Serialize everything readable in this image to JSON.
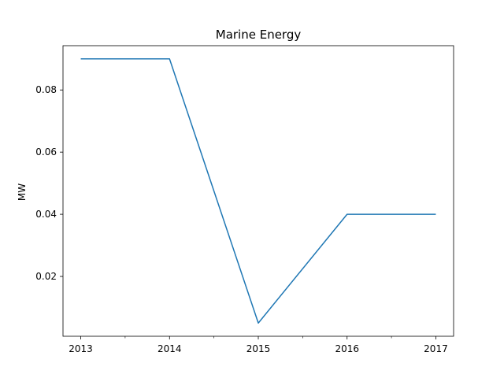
{
  "chart_data": {
    "type": "line",
    "title": "Marine Energy",
    "xlabel": "",
    "ylabel": "MW",
    "x": [
      2013,
      2014,
      2015,
      2016,
      2017
    ],
    "series": [
      {
        "values": [
          0.09,
          0.09,
          0.005,
          0.04,
          0.04
        ],
        "color": "#1f77b4"
      }
    ],
    "xlim": [
      2012.8,
      2017.2
    ],
    "ylim": [
      0.00075,
      0.09425
    ],
    "x_ticks": [
      2013,
      2014,
      2015,
      2016,
      2017
    ],
    "x_tick_labels": [
      "2013",
      "2014",
      "2015",
      "2016",
      "2017"
    ],
    "x_minor_ticks": [
      2013.5,
      2014.5,
      2015.5,
      2016.5
    ],
    "y_ticks": [
      0.02,
      0.04,
      0.06,
      0.08
    ],
    "y_tick_labels": [
      "0.02",
      "0.04",
      "0.06",
      "0.08"
    ],
    "grid": false,
    "legend": false
  }
}
